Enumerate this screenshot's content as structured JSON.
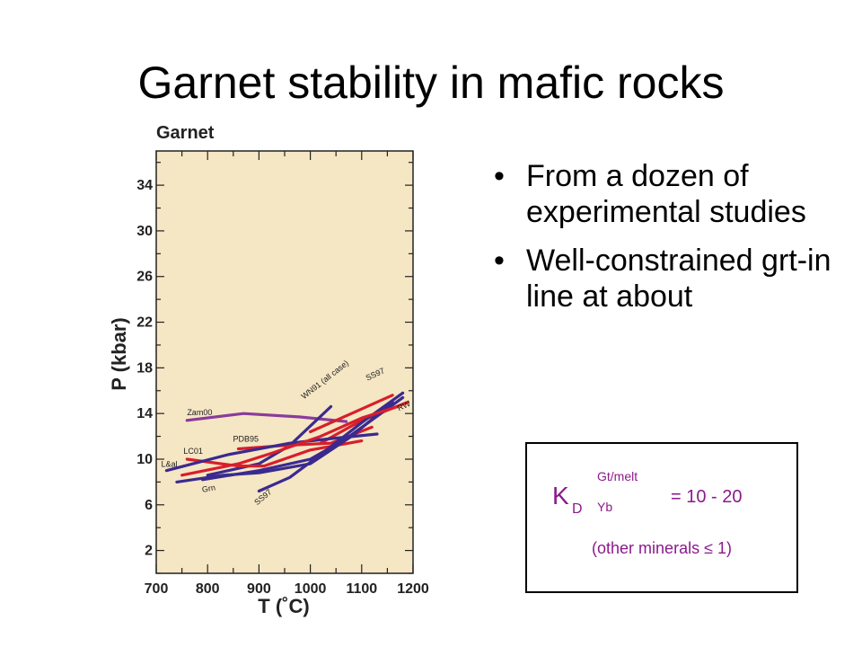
{
  "slide": {
    "title": "Garnet stability in mafic rocks",
    "bullets": [
      "From a dozen of experimental studies",
      "Well-constrained grt-in line at about"
    ]
  },
  "kd_box": {
    "K": "K",
    "D": "D",
    "sup": "Gt/melt",
    "sub": "Yb",
    "equation": "= 10 - 20",
    "note": "(other minerals ≤ 1)"
  },
  "colors": {
    "panel_bg": "#f5e6c4",
    "axes": "#222222",
    "blue_series": "#3a2a8f",
    "red_series": "#d81e2b",
    "purple_series": "#8a3b9b",
    "kd_text": "#8b1a8b"
  },
  "chart_data": {
    "type": "line",
    "title": "Garnet",
    "xlabel": "T (˚C)",
    "ylabel": "P (kbar)",
    "xlim": [
      700,
      1200
    ],
    "ylim": [
      0,
      37
    ],
    "xticks": [
      700,
      800,
      900,
      1000,
      1100,
      1200
    ],
    "yticks": [
      2,
      6,
      10,
      14,
      18,
      22,
      26,
      30,
      34
    ],
    "grid": false,
    "series": [
      {
        "name": "Zam00",
        "color": "purple",
        "points": [
          [
            760,
            13.4
          ],
          [
            870,
            14.0
          ],
          [
            980,
            13.7
          ],
          [
            1070,
            13.3
          ]
        ]
      },
      {
        "name": "WN91 (all case)",
        "color": "blue",
        "points": [
          [
            800,
            8.6
          ],
          [
            900,
            9.6
          ],
          [
            960,
            11.2
          ],
          [
            1040,
            14.6
          ]
        ]
      },
      {
        "name": "SS97",
        "color": "red",
        "points": [
          [
            1000,
            12.4
          ],
          [
            1080,
            14.0
          ],
          [
            1160,
            15.6
          ]
        ]
      },
      {
        "name": "RW",
        "color": "red",
        "points": [
          [
            1020,
            11.4
          ],
          [
            1100,
            13.4
          ],
          [
            1190,
            15.0
          ]
        ]
      },
      {
        "name": "PDB95",
        "color": "red",
        "points": [
          [
            860,
            10.9
          ],
          [
            950,
            11.2
          ],
          [
            1040,
            11.4
          ],
          [
            1120,
            12.8
          ]
        ]
      },
      {
        "name": "LC01",
        "color": "red",
        "points": [
          [
            760,
            10.0
          ],
          [
            860,
            9.4
          ],
          [
            910,
            9.4
          ],
          [
            1000,
            10.8
          ],
          [
            1100,
            11.6
          ]
        ]
      },
      {
        "name": "L&al",
        "color": "blue",
        "points": [
          [
            720,
            9.0
          ],
          [
            840,
            10.4
          ],
          [
            960,
            11.4
          ],
          [
            1040,
            11.8
          ],
          [
            1130,
            12.2
          ]
        ]
      },
      {
        "name": "Grn",
        "color": "blue",
        "points": [
          [
            790,
            8.2
          ],
          [
            900,
            9.0
          ],
          [
            1000,
            10.0
          ],
          [
            1070,
            11.8
          ],
          [
            1180,
            15.4
          ]
        ]
      },
      {
        "name": "SS97",
        "color": "blue",
        "points": [
          [
            900,
            7.2
          ],
          [
            960,
            8.4
          ],
          [
            1020,
            10.4
          ],
          [
            1100,
            13.2
          ],
          [
            1180,
            15.8
          ]
        ]
      },
      {
        "name": "",
        "color": "blue",
        "points": [
          [
            740,
            8.0
          ],
          [
            830,
            8.6
          ],
          [
            900,
            8.8
          ],
          [
            1000,
            9.6
          ],
          [
            1080,
            12.0
          ],
          [
            1160,
            15.0
          ]
        ]
      },
      {
        "name": "",
        "color": "red",
        "points": [
          [
            750,
            8.6
          ],
          [
            860,
            9.6
          ],
          [
            930,
            10.6
          ],
          [
            1020,
            12.0
          ],
          [
            1100,
            13.6
          ],
          [
            1170,
            14.6
          ]
        ]
      }
    ]
  }
}
